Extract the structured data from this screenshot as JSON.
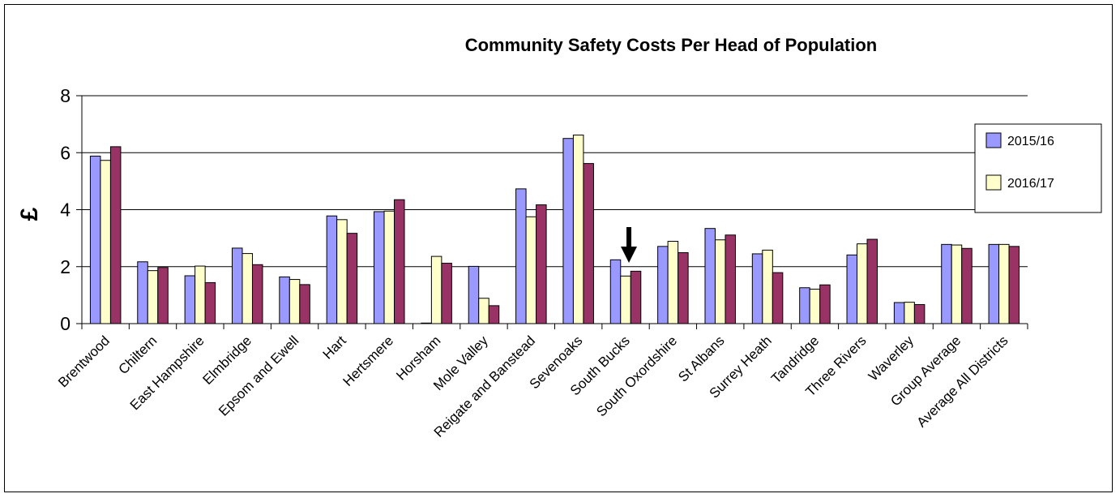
{
  "chart_data": {
    "type": "bar",
    "title": "Community Safety Costs Per Head of Population",
    "xlabel": "",
    "ylabel": "£",
    "ylim": [
      0,
      8
    ],
    "yticks": [
      "0",
      "2",
      "4",
      "6",
      "8"
    ],
    "grid": true,
    "legend_position": "right",
    "categories": [
      "Brentwood",
      "Chiltern",
      "East Hampshire",
      "Elmbridge",
      "Epsom and Ewell",
      "Hart",
      "Hertsmere",
      "Horsham",
      "Mole Valley",
      "Reigate and Banstead",
      "Sevenoaks",
      "South Bucks",
      "South Oxordshire",
      "St Albans",
      "Surrey Heath",
      "Tandridge",
      "Three Rivers",
      "Waverley",
      "Group Average",
      "Average All Districts"
    ],
    "series": [
      {
        "name": "2015/16",
        "color": "#9999ff",
        "values": [
          5.88,
          2.17,
          1.68,
          2.65,
          1.64,
          3.78,
          3.93,
          0.02,
          2.01,
          4.73,
          6.5,
          2.24,
          2.71,
          3.34,
          2.45,
          1.26,
          2.41,
          0.74,
          2.78,
          2.78
        ]
      },
      {
        "name": "2016/17",
        "color": "#ffffcc",
        "values": [
          5.73,
          1.86,
          2.02,
          2.46,
          1.55,
          3.65,
          3.95,
          2.36,
          0.89,
          3.75,
          6.62,
          1.67,
          2.89,
          2.94,
          2.58,
          1.21,
          2.8,
          0.75,
          2.76,
          2.78
        ]
      },
      {
        "color": "#993366",
        "values": [
          6.21,
          1.97,
          1.44,
          2.07,
          1.37,
          3.17,
          4.35,
          2.12,
          0.63,
          4.17,
          5.62,
          1.84,
          2.49,
          3.11,
          1.79,
          1.36,
          2.96,
          0.67,
          2.64,
          2.71
        ]
      }
    ],
    "annotations": [
      {
        "type": "arrow",
        "direction": "down",
        "target": "South Bucks"
      }
    ]
  }
}
